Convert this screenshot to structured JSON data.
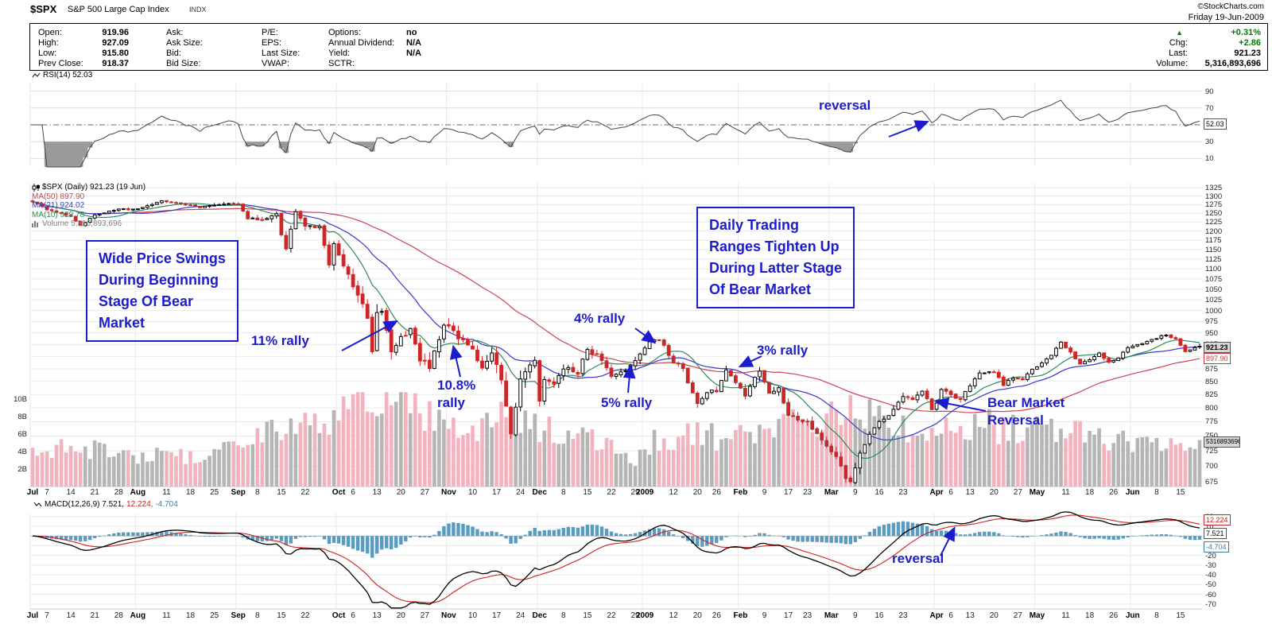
{
  "header": {
    "symbol": "$SPX",
    "name": "S&P 500 Large Cap Index",
    "exchange": "INDX",
    "credit": "©StockCharts.com",
    "date": "Friday 19-Jun-2009"
  },
  "quote": {
    "rows_a": [
      [
        "Open:",
        "919.96"
      ],
      [
        "High:",
        "927.09"
      ],
      [
        "Low:",
        "915.80"
      ],
      [
        "Prev Close:",
        "918.37"
      ]
    ],
    "rows_b": [
      [
        "Ask:",
        ""
      ],
      [
        "Ask Size:",
        ""
      ],
      [
        "Bid:",
        ""
      ],
      [
        "Bid Size:",
        ""
      ]
    ],
    "rows_c": [
      [
        "P/E:",
        ""
      ],
      [
        "EPS:",
        ""
      ],
      [
        "Last Size:",
        ""
      ],
      [
        "VWAP:",
        ""
      ]
    ],
    "rows_d": [
      [
        "Options:",
        "no"
      ],
      [
        "Annual Dividend:",
        "N/A"
      ],
      [
        "Yield:",
        "N/A"
      ],
      [
        "SCTR:",
        ""
      ]
    ],
    "pct": "+0.31%",
    "chg_label": "Chg:",
    "chg": "+2.86",
    "last_label": "Last:",
    "last": "921.23",
    "vol_label": "Volume:",
    "vol": "5,316,893,696"
  },
  "rsi_panel": {
    "label": "RSI(14) 52.03",
    "tag": "52.03"
  },
  "main_panel": {
    "legend_symbol": "$SPX (Daily) 921.23 (19 Jun)",
    "legend_ma50": "MA(50) 897.90",
    "legend_ma21": "MA(21) 924.02",
    "legend_ma10": "MA(10) 929.78",
    "legend_volume": "Volume 5,316,893,696",
    "tag_last": "921.23",
    "tag_ma50": "897.90",
    "tag_volume": "5316893696"
  },
  "macd_panel": {
    "label_main": "MACD(12,26,9) 7.521,",
    "label_signal": "12.224,",
    "label_hist": "-4.704",
    "tag_signal": "12.224",
    "tag_macd": "7.521",
    "tag_hist": "-4.704"
  },
  "annotations": {
    "rsi_reversal": {
      "text": "reversal",
      "snap_day": 187
    },
    "rally11": {
      "text": "11% rally",
      "tip_day": 76,
      "tip_value": 975
    },
    "rally108": {
      "text": "10.8% rally",
      "tip_day": 88,
      "tip_value": 920
    },
    "rally4": {
      "text": "4% rally",
      "tip_day": 130,
      "tip_value": 930
    },
    "rally5": {
      "text": "5% rally",
      "tip_day": 125,
      "tip_value": 880
    },
    "rally3": {
      "text": "3% rally",
      "tip_day": 148,
      "tip_value": 880
    },
    "bear_reversal": {
      "text": "Bear Market Reversal",
      "tip_day": 189,
      "tip_value": 812
    },
    "macd_reversal": {
      "text": "reversal",
      "snap_day": 193
    },
    "box_early": [
      "Wide Price Swings",
      "During Beginning",
      "Stage Of Bear",
      "Market"
    ],
    "box_late": [
      "Daily Trading",
      "Ranges Tighten Up",
      "During Latter Stage",
      "Of Bear Market"
    ]
  },
  "colors": {
    "up_candle": "#000000",
    "down_candle": "#cc2626",
    "vol_up": "#b5b5b5",
    "vol_down": "#f2b3bf",
    "ma50": "#cc4455",
    "ma21": "#3a3acc",
    "ma10": "#2e8b57",
    "rsi": "#444444",
    "macd": "#000000",
    "signal": "#cc2222",
    "hist": "#5b9bc0",
    "annotation": "#1c1ccd",
    "grid": "#e9e9e9",
    "green": "#007a00"
  },
  "chart_data": [
    {
      "panel": "rsi",
      "type": "line",
      "title": "RSI(14)",
      "last_value": 52.03,
      "ylim": [
        0,
        100
      ],
      "yticks": [
        90,
        70,
        30,
        10
      ],
      "mid_line": 50,
      "oversold": 30,
      "overbought": 70,
      "note": "RSI(14) oscillator of $SPX daily closes; dips below 30 in Oct 2008 and Feb-Mar 2009; ends at 52.03 on 19-Jun-2009"
    },
    {
      "panel": "price",
      "type": "candlestick",
      "symbol": "$SPX",
      "timeframe": "Daily",
      "days": 245,
      "scale": "log",
      "ylim": [
        668,
        1340
      ],
      "yticks": [
        675,
        700,
        725,
        750,
        775,
        800,
        825,
        850,
        875,
        900,
        925,
        950,
        975,
        1000,
        1025,
        1050,
        1075,
        1100,
        1125,
        1150,
        1175,
        1200,
        1225,
        1250,
        1275,
        1300,
        1325
      ],
      "volume_ticks": [
        [
          2,
          "2B"
        ],
        [
          4,
          "4B"
        ],
        [
          6,
          "6B"
        ],
        [
          8,
          "8B"
        ],
        [
          10,
          "10B"
        ]
      ],
      "last": {
        "open": 919.96,
        "high": 927.09,
        "low": 915.8,
        "close": 921.23,
        "prev_close": 918.37,
        "volume_B": 5.317
      },
      "ma_last": {
        "ma50": 897.9,
        "ma21": 924.02,
        "ma10": 929.78
      },
      "price_anchors": [
        [
          0,
          1285
        ],
        [
          3,
          1262
        ],
        [
          8,
          1240
        ],
        [
          10,
          1215
        ],
        [
          13,
          1245
        ],
        [
          18,
          1262
        ],
        [
          22,
          1261
        ],
        [
          27,
          1285
        ],
        [
          31,
          1278
        ],
        [
          35,
          1266
        ],
        [
          40,
          1278
        ],
        [
          43,
          1277
        ],
        [
          45,
          1236
        ],
        [
          48,
          1232
        ],
        [
          51,
          1251
        ],
        [
          52,
          1192
        ],
        [
          53,
          1156
        ],
        [
          55,
          1255
        ],
        [
          57,
          1213
        ],
        [
          60,
          1209
        ],
        [
          62,
          1106
        ],
        [
          63,
          1166
        ],
        [
          65,
          1114
        ],
        [
          67,
          1056
        ],
        [
          70,
          985
        ],
        [
          71,
          910
        ],
        [
          72,
          1003
        ],
        [
          73,
          998
        ],
        [
          75,
          908
        ],
        [
          77,
          946
        ],
        [
          79,
          955
        ],
        [
          81,
          897
        ],
        [
          83,
          877
        ],
        [
          85,
          940
        ],
        [
          86,
          969
        ],
        [
          88,
          953
        ],
        [
          90,
          930
        ],
        [
          92,
          919
        ],
        [
          94,
          873
        ],
        [
          96,
          911
        ],
        [
          98,
          850
        ],
        [
          100,
          752
        ],
        [
          102,
          852
        ],
        [
          104,
          887
        ],
        [
          105,
          896
        ],
        [
          106,
          816
        ],
        [
          107,
          849
        ],
        [
          109,
          845
        ],
        [
          111,
          877
        ],
        [
          114,
          868
        ],
        [
          116,
          913
        ],
        [
          118,
          904
        ],
        [
          121,
          863
        ],
        [
          124,
          869
        ],
        [
          127,
          903
        ],
        [
          129,
          932
        ],
        [
          131,
          935
        ],
        [
          134,
          890
        ],
        [
          136,
          872
        ],
        [
          139,
          805
        ],
        [
          141,
          828
        ],
        [
          143,
          832
        ],
        [
          145,
          874
        ],
        [
          147,
          846
        ],
        [
          149,
          825
        ],
        [
          152,
          870
        ],
        [
          154,
          827
        ],
        [
          156,
          835
        ],
        [
          158,
          788
        ],
        [
          160,
          778
        ],
        [
          162,
          773
        ],
        [
          164,
          753
        ],
        [
          166,
          735
        ],
        [
          168,
          712
        ],
        [
          170,
          683
        ],
        [
          171,
          676
        ],
        [
          173,
          720
        ],
        [
          175,
          756
        ],
        [
          177,
          778
        ],
        [
          179,
          784
        ],
        [
          182,
          823
        ],
        [
          184,
          814
        ],
        [
          186,
          832
        ],
        [
          188,
          798
        ],
        [
          189,
          811
        ],
        [
          190,
          835
        ],
        [
          192,
          823
        ],
        [
          194,
          815
        ],
        [
          196,
          842
        ],
        [
          198,
          865
        ],
        [
          201,
          869
        ],
        [
          203,
          843
        ],
        [
          205,
          857
        ],
        [
          207,
          855
        ],
        [
          209,
          873
        ],
        [
          210,
          877
        ],
        [
          213,
          903
        ],
        [
          215,
          929
        ],
        [
          217,
          909
        ],
        [
          219,
          884
        ],
        [
          221,
          893
        ],
        [
          223,
          908
        ],
        [
          225,
          887
        ],
        [
          227,
          897
        ],
        [
          229,
          919
        ],
        [
          231,
          926
        ],
        [
          233,
          931
        ],
        [
          235,
          939
        ],
        [
          237,
          946
        ],
        [
          239,
          936
        ],
        [
          241,
          911
        ],
        [
          243,
          918.37
        ],
        [
          244,
          921.23
        ]
      ],
      "volatility_anchors": [
        [
          0,
          13
        ],
        [
          30,
          11
        ],
        [
          43,
          17
        ],
        [
          52,
          27
        ],
        [
          60,
          30
        ],
        [
          64,
          40
        ],
        [
          72,
          52
        ],
        [
          80,
          45
        ],
        [
          90,
          36
        ],
        [
          100,
          46
        ],
        [
          108,
          30
        ],
        [
          118,
          25
        ],
        [
          127,
          19
        ],
        [
          135,
          23
        ],
        [
          145,
          21
        ],
        [
          155,
          21
        ],
        [
          165,
          23
        ],
        [
          171,
          27
        ],
        [
          178,
          21
        ],
        [
          186,
          17
        ],
        [
          195,
          14
        ],
        [
          205,
          13
        ],
        [
          215,
          12
        ],
        [
          225,
          11
        ],
        [
          235,
          10
        ],
        [
          244,
          9
        ]
      ],
      "volume_anchors_B": [
        [
          0,
          4.2
        ],
        [
          8,
          4.8
        ],
        [
          15,
          4.0
        ],
        [
          22,
          3.6
        ],
        [
          30,
          3.4
        ],
        [
          36,
          3.2
        ],
        [
          43,
          5.0
        ],
        [
          50,
          6.2
        ],
        [
          55,
          7.4
        ],
        [
          60,
          6.6
        ],
        [
          64,
          8.6
        ],
        [
          68,
          9.6
        ],
        [
          72,
          10.4
        ],
        [
          77,
          9.2
        ],
        [
          82,
          8.0
        ],
        [
          87,
          7.2
        ],
        [
          92,
          7.0
        ],
        [
          97,
          7.6
        ],
        [
          100,
          9.2
        ],
        [
          103,
          6.8
        ],
        [
          106,
          6.6
        ],
        [
          111,
          5.8
        ],
        [
          116,
          5.6
        ],
        [
          121,
          4.4
        ],
        [
          126,
          2.6
        ],
        [
          128,
          4.8
        ],
        [
          133,
          5.6
        ],
        [
          139,
          6.0
        ],
        [
          145,
          5.4
        ],
        [
          148,
          6.0
        ],
        [
          153,
          6.4
        ],
        [
          158,
          7.0
        ],
        [
          163,
          7.4
        ],
        [
          167,
          7.8
        ],
        [
          171,
          8.4
        ],
        [
          175,
          7.8
        ],
        [
          180,
          7.0
        ],
        [
          185,
          6.6
        ],
        [
          189,
          6.2
        ],
        [
          193,
          6.6
        ],
        [
          198,
          7.2
        ],
        [
          203,
          6.6
        ],
        [
          208,
          6.2
        ],
        [
          213,
          6.4
        ],
        [
          217,
          6.8
        ],
        [
          221,
          5.8
        ],
        [
          226,
          5.4
        ],
        [
          230,
          4.8
        ],
        [
          235,
          4.6
        ],
        [
          240,
          4.4
        ],
        [
          244,
          5.3
        ]
      ],
      "x_ticks": [
        [
          "Jul",
          0
        ],
        [
          "7",
          3
        ],
        [
          "14",
          8
        ],
        [
          "21",
          13
        ],
        [
          "28",
          18
        ],
        [
          "Aug",
          22
        ],
        [
          "11",
          28
        ],
        [
          "18",
          33
        ],
        [
          "25",
          38
        ],
        [
          "Sep",
          43
        ],
        [
          "8",
          47
        ],
        [
          "15",
          52
        ],
        [
          "22",
          57
        ],
        [
          "Oct",
          64
        ],
        [
          "6",
          67
        ],
        [
          "13",
          72
        ],
        [
          "20",
          77
        ],
        [
          "27",
          82
        ],
        [
          "Nov",
          87
        ],
        [
          "10",
          92
        ],
        [
          "17",
          97
        ],
        [
          "24",
          102
        ],
        [
          "Dec",
          106
        ],
        [
          "8",
          111
        ],
        [
          "15",
          116
        ],
        [
          "22",
          121
        ],
        [
          "29",
          126
        ],
        [
          "2009",
          128
        ],
        [
          "12",
          134
        ],
        [
          "20",
          139
        ],
        [
          "26",
          143
        ],
        [
          "Feb",
          148
        ],
        [
          "9",
          153
        ],
        [
          "17",
          158
        ],
        [
          "23",
          162
        ],
        [
          "Mar",
          167
        ],
        [
          "9",
          172
        ],
        [
          "16",
          177
        ],
        [
          "23",
          182
        ],
        [
          "Apr",
          189
        ],
        [
          "6",
          192
        ],
        [
          "13",
          196
        ],
        [
          "20",
          201
        ],
        [
          "27",
          206
        ],
        [
          "May",
          210
        ],
        [
          "11",
          216
        ],
        [
          "18",
          221
        ],
        [
          "26",
          226
        ],
        [
          "Jun",
          230
        ],
        [
          "8",
          235
        ],
        [
          "15",
          240
        ]
      ],
      "month_starts": [
        0,
        22,
        43,
        64,
        87,
        106,
        128,
        148,
        167,
        189,
        210,
        230
      ]
    },
    {
      "panel": "macd",
      "type": "line+histogram",
      "title": "MACD(12,26,9)",
      "params": [
        12,
        26,
        9
      ],
      "last": {
        "macd": 7.521,
        "signal": 12.224,
        "hist": -4.704
      },
      "ylim": [
        -75,
        23
      ],
      "yticks": [
        20,
        10,
        0,
        -10,
        -20,
        -30,
        -40,
        -50,
        -60,
        -70
      ],
      "note": "MACD computed from the daily close series of the price panel; deeply negative Oct-Nov 2008, positive after the March 2009 reversal"
    }
  ]
}
